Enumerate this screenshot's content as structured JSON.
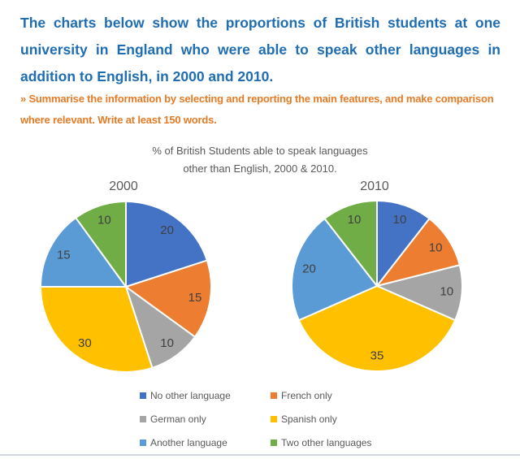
{
  "theme": {
    "prompt_color": "#1F6DB2",
    "instruction_color": "#E47B26",
    "chart_text_color": "#595959",
    "value_label_color": "#404040",
    "divider_color": "#D2D9E0",
    "background": "#FFFFFF"
  },
  "header": {
    "prompt": "The charts below show the proportions of British students at one university in England who were able to speak other languages in addition to English, in 2000 and 2010.",
    "instruction": "» Summarise the information by selecting and reporting the main features, and make comparison where relevant. Write at least 150 words."
  },
  "chart_data": {
    "type": "pie",
    "title": "% of British Students able to speak languages other than English, 2000 & 2010.",
    "title_lines": [
      "% of British Students able to speak languages",
      "other than English, 2000 & 2010."
    ],
    "categories": [
      "No other language",
      "French only",
      "German only",
      "Spanish only",
      "Another language",
      "Two other languages"
    ],
    "colors": [
      "#4472C4",
      "#ED7D31",
      "#A5A5A5",
      "#FFC000",
      "#5B9BD5",
      "#70AD47"
    ],
    "series": [
      {
        "name": "2000",
        "values": [
          20,
          15,
          10,
          30,
          15,
          10
        ]
      },
      {
        "name": "2010",
        "values": [
          10,
          10,
          10,
          35,
          20,
          10
        ]
      }
    ],
    "units": "percent",
    "legend_position": "bottom",
    "start_angle_deg": 0,
    "direction": "clockwise"
  }
}
